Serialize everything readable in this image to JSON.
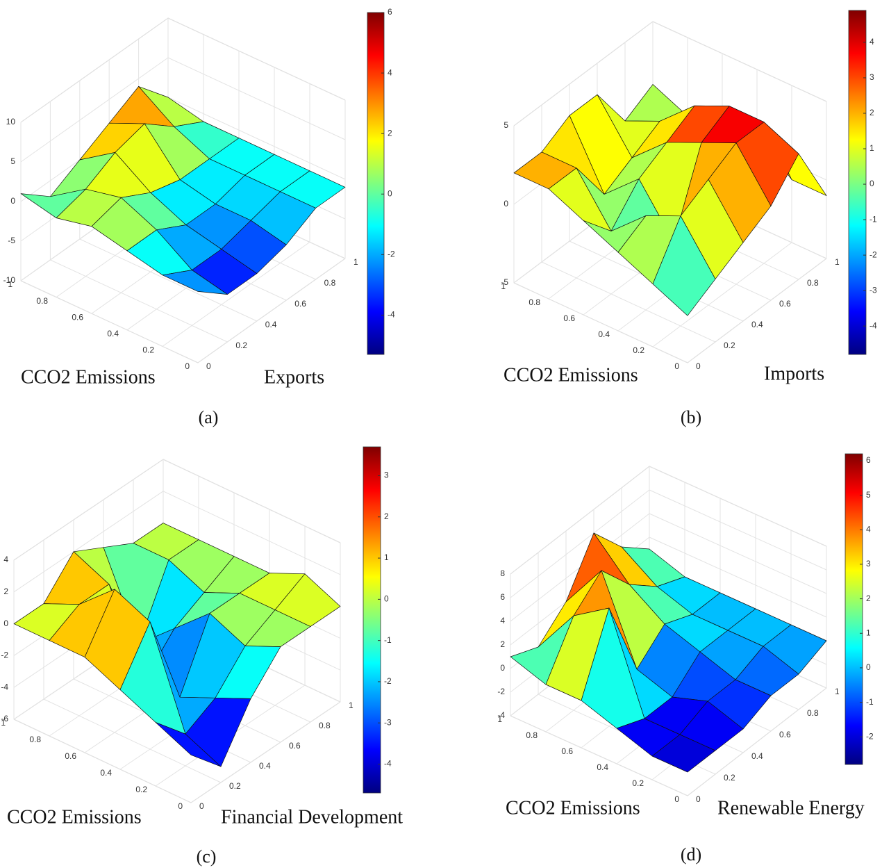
{
  "chart_data": [
    {
      "type": "surface",
      "label": "(a)",
      "x_label": "CCO2 Emissions",
      "y_label": "Exports",
      "x": [
        0,
        0.2,
        0.4,
        0.6,
        0.8,
        1
      ],
      "y": [
        0,
        0.2,
        0.4,
        0.6,
        0.8,
        1
      ],
      "z": [
        [
          -1,
          -4,
          -4,
          -3,
          -1,
          -1
        ],
        [
          -1,
          -3,
          -3,
          -2,
          -1,
          -1
        ],
        [
          0,
          0,
          -2,
          -2,
          -1,
          -1
        ],
        [
          1,
          2,
          0,
          -1,
          -1,
          -1
        ],
        [
          0,
          1,
          3,
          4,
          1,
          -1
        ],
        [
          1,
          -2,
          0,
          2,
          4,
          0
        ]
      ],
      "xlim": [
        0,
        1
      ],
      "xticks": [
        0,
        0.2,
        0.4,
        0.6,
        0.8,
        1
      ],
      "ylim": [
        0,
        1
      ],
      "yticks": [
        0,
        0.2,
        0.4,
        0.6,
        0.8,
        1
      ],
      "zlim": [
        -10,
        10
      ],
      "zticks": [
        -10,
        -5,
        0,
        5,
        10
      ],
      "clim": [
        -5.3,
        6
      ],
      "cticks": [
        -4,
        -2,
        0,
        2,
        4,
        6
      ],
      "colormap": "jet",
      "grid": true
    },
    {
      "type": "surface",
      "label": "(b)",
      "x_label": "CCO2 Emissions",
      "y_label": "Imports",
      "x": [
        0,
        0.2,
        0.4,
        0.6,
        0.8,
        1
      ],
      "y": [
        0,
        0.2,
        0.4,
        0.6,
        0.8,
        1
      ],
      "z": [
        [
          -2,
          -1,
          0,
          1,
          3,
          -1
        ],
        [
          -1,
          2,
          3,
          4,
          4,
          -1
        ],
        [
          0,
          1,
          -2,
          3,
          4,
          1
        ],
        [
          1,
          -1,
          1,
          2,
          3,
          -2
        ],
        [
          2,
          2,
          -1,
          0,
          1,
          0
        ],
        [
          2,
          2,
          3,
          3,
          0,
          1
        ]
      ],
      "xlim": [
        0,
        1
      ],
      "xticks": [
        0,
        0.2,
        0.4,
        0.6,
        0.8,
        1
      ],
      "ylim": [
        0,
        1
      ],
      "yticks": [
        0,
        0.2,
        0.4,
        0.6,
        0.8,
        1
      ],
      "zlim": [
        -5,
        5
      ],
      "zticks": [
        -5,
        0,
        5
      ],
      "clim": [
        -4.8,
        4.9
      ],
      "cticks": [
        -4,
        -3,
        -2,
        -1,
        0,
        1,
        2,
        3,
        4
      ],
      "colormap": "jet",
      "grid": true
    },
    {
      "type": "surface",
      "label": "(c)",
      "x_label": "CCO2 Emissions",
      "y_label": "Financial Development",
      "x": [
        0,
        0.2,
        0.4,
        0.6,
        0.8,
        1
      ],
      "y": [
        0,
        0.2,
        0.4,
        0.6,
        0.8,
        1
      ],
      "z": [
        [
          -3,
          -5,
          -2,
          0,
          0,
          0
        ],
        [
          -2,
          -4,
          -3,
          -1,
          0,
          1
        ],
        [
          -1,
          2,
          -4,
          0,
          0,
          0
        ],
        [
          0,
          3,
          -4,
          -2,
          -1,
          0
        ],
        [
          0,
          1,
          1,
          -4,
          0,
          0
        ],
        [
          0,
          0,
          2,
          1,
          0,
          0
        ]
      ],
      "xlim": [
        0,
        1
      ],
      "xticks": [
        0,
        0.2,
        0.4,
        0.6,
        0.8,
        1
      ],
      "ylim": [
        0,
        1
      ],
      "yticks": [
        0,
        0.2,
        0.4,
        0.6,
        0.8,
        1
      ],
      "zlim": [
        -6,
        4
      ],
      "zticks": [
        -6,
        -4,
        -2,
        0,
        2,
        4
      ],
      "clim": [
        -4.7,
        3.7
      ],
      "cticks": [
        -4,
        -3,
        -2,
        -1,
        0,
        1,
        2,
        3
      ],
      "colormap": "jet",
      "grid": true
    },
    {
      "type": "surface",
      "label": "(d)",
      "x_label": "CCO2 Emissions",
      "y_label": "Renewable Energy",
      "x": [
        0,
        0.2,
        0.4,
        0.6,
        0.8,
        1
      ],
      "y": [
        0,
        0.2,
        0.4,
        0.6,
        0.8,
        1
      ],
      "z": [
        [
          -2,
          -2,
          -2,
          -1,
          -1,
          0
        ],
        [
          -2,
          -2,
          -1,
          -1,
          0,
          0
        ],
        [
          -1,
          -2,
          -2,
          0,
          0,
          0
        ],
        [
          0,
          6,
          -1,
          1,
          0,
          0
        ],
        [
          0,
          4,
          6,
          3,
          1,
          0
        ],
        [
          1,
          0,
          2,
          6,
          3,
          1
        ]
      ],
      "xlim": [
        0,
        1
      ],
      "xticks": [
        0,
        0.2,
        0.4,
        0.6,
        0.8,
        1
      ],
      "ylim": [
        0,
        1
      ],
      "yticks": [
        0,
        0.2,
        0.4,
        0.6,
        0.8,
        1
      ],
      "zlim": [
        -4,
        8
      ],
      "zticks": [
        -4,
        -2,
        0,
        2,
        4,
        6,
        8
      ],
      "clim": [
        -2.8,
        6.2
      ],
      "cticks": [
        -2,
        -1,
        0,
        1,
        2,
        3,
        4,
        5,
        6
      ],
      "colormap": "jet",
      "grid": true
    }
  ]
}
